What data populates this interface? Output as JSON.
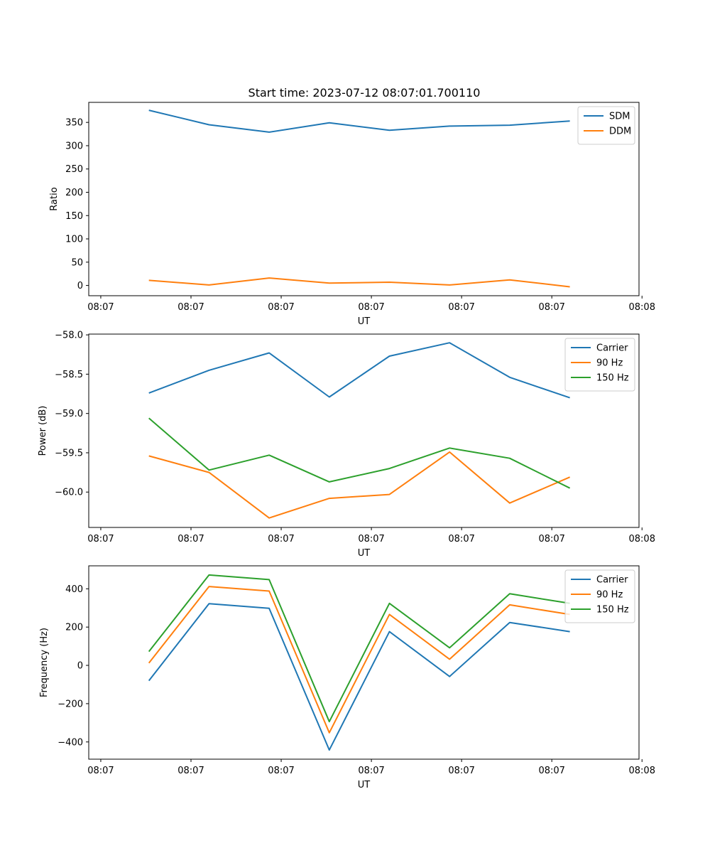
{
  "figure_title": "Start time: 2023-07-12 08:07:01.700110",
  "chart_data": [
    {
      "type": "line",
      "title": "Start time: 2023-07-12 08:07:01.700110",
      "xlabel": "UT",
      "ylabel": "Ratio",
      "x": [
        1,
        2,
        3,
        4,
        5,
        6,
        7,
        8
      ],
      "xlim": [
        0,
        9.15
      ],
      "xticks": [
        0.2,
        1.7,
        3.2,
        4.7,
        6.2,
        7.7,
        9.2
      ],
      "xtick_labels": [
        "08:07",
        "08:07",
        "08:07",
        "08:07",
        "08:07",
        "08:07",
        "08:08"
      ],
      "ylim": [
        -22,
        393
      ],
      "yticks": [
        0,
        50,
        100,
        150,
        200,
        250,
        300,
        350
      ],
      "legend_position": "upper right",
      "series": [
        {
          "name": "SDM",
          "color": "#1f77b4",
          "values": [
            376,
            345,
            329,
            349,
            333,
            342,
            344,
            353
          ]
        },
        {
          "name": "DDM",
          "color": "#ff7f0e",
          "values": [
            11,
            1,
            16,
            5,
            7,
            1,
            12,
            -3
          ]
        }
      ]
    },
    {
      "type": "line",
      "title": "",
      "xlabel": "UT",
      "ylabel": "Power (dB)",
      "x": [
        1,
        2,
        3,
        4,
        5,
        6,
        7,
        8
      ],
      "xlim": [
        0,
        9.15
      ],
      "xticks": [
        0.2,
        1.7,
        3.2,
        4.7,
        6.2,
        7.7,
        9.2
      ],
      "xtick_labels": [
        "08:07",
        "08:07",
        "08:07",
        "08:07",
        "08:07",
        "08:07",
        "08:08"
      ],
      "ylim": [
        -60.45,
        -57.99
      ],
      "yticks": [
        -60.0,
        -59.5,
        -59.0,
        -58.5,
        -58.0
      ],
      "ytick_labels": [
        "−60.0",
        "−59.5",
        "−59.0",
        "−58.5",
        "−58.0"
      ],
      "legend_position": "upper right",
      "series": [
        {
          "name": "Carrier",
          "color": "#1f77b4",
          "values": [
            -58.74,
            -58.45,
            -58.23,
            -58.79,
            -58.27,
            -58.1,
            -58.54,
            -58.8
          ]
        },
        {
          "name": "90 Hz",
          "color": "#ff7f0e",
          "values": [
            -59.54,
            -59.75,
            -60.33,
            -60.08,
            -60.03,
            -59.49,
            -60.14,
            -59.81
          ]
        },
        {
          "name": "150 Hz",
          "color": "#2ca02c",
          "values": [
            -59.06,
            -59.72,
            -59.53,
            -59.87,
            -59.7,
            -59.44,
            -59.57,
            -59.95
          ]
        }
      ]
    },
    {
      "type": "line",
      "title": "",
      "xlabel": "UT",
      "ylabel": "Frequency (Hz)",
      "x": [
        1,
        2,
        3,
        4,
        5,
        6,
        7,
        8
      ],
      "xlim": [
        0,
        9.15
      ],
      "xticks": [
        0.2,
        1.7,
        3.2,
        4.7,
        6.2,
        7.7,
        9.2
      ],
      "xtick_labels": [
        "08:07",
        "08:07",
        "08:07",
        "08:07",
        "08:07",
        "08:07",
        "08:08"
      ],
      "ylim": [
        -490,
        520
      ],
      "yticks": [
        -400,
        -200,
        0,
        200,
        400
      ],
      "ytick_labels": [
        "−400",
        "−200",
        "0",
        "200",
        "400"
      ],
      "legend_position": "upper right",
      "series": [
        {
          "name": "Carrier",
          "color": "#1f77b4",
          "values": [
            -80,
            322,
            298,
            -442,
            176,
            -58,
            224,
            176
          ]
        },
        {
          "name": "90 Hz",
          "color": "#ff7f0e",
          "values": [
            12,
            412,
            388,
            -352,
            266,
            32,
            316,
            266
          ]
        },
        {
          "name": "150 Hz",
          "color": "#2ca02c",
          "values": [
            72,
            472,
            448,
            -294,
            324,
            92,
            374,
            324
          ]
        }
      ]
    }
  ]
}
